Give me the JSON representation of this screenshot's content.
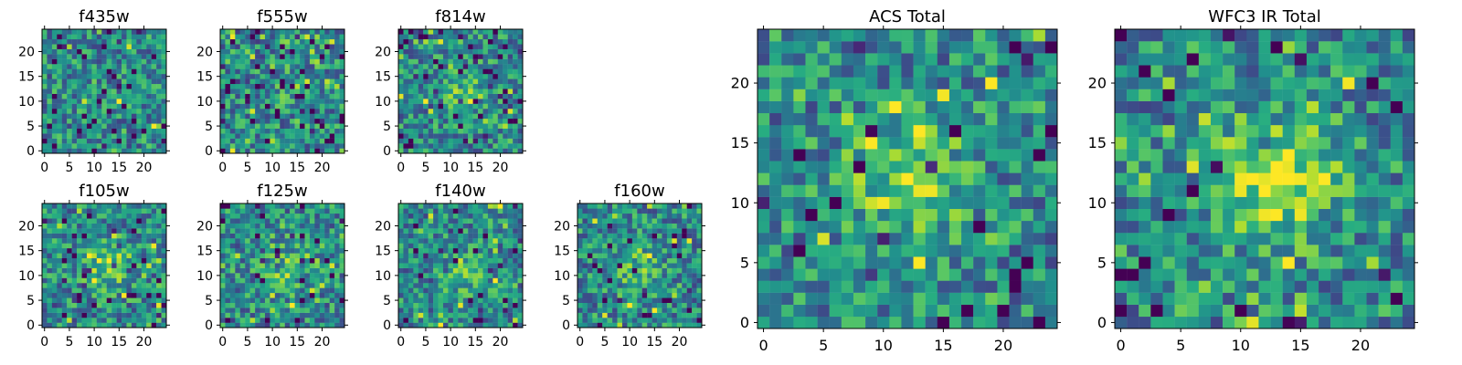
{
  "chart_data": [
    {
      "type": "heatmap",
      "title": "f435w",
      "grid": false,
      "xlim": [
        0,
        24
      ],
      "ylim": [
        0,
        24
      ],
      "xticks": [
        "0",
        "5",
        "10",
        "15",
        "20"
      ],
      "yticks": [
        "0",
        "5",
        "10",
        "15",
        "20"
      ],
      "rows": 25,
      "cols": 25,
      "seed": 11,
      "bright_center": [
        12,
        8
      ],
      "bright_strength": 0.0,
      "dark_fraction": 0.08,
      "colormap": "viridis"
    },
    {
      "type": "heatmap",
      "title": "f555w",
      "grid": false,
      "xlim": [
        0,
        24
      ],
      "ylim": [
        0,
        24
      ],
      "xticks": [
        "0",
        "5",
        "10",
        "15",
        "20"
      ],
      "yticks": [
        "0",
        "5",
        "10",
        "15",
        "20"
      ],
      "rows": 25,
      "cols": 25,
      "seed": 23,
      "bright_center": [
        13,
        12
      ],
      "bright_strength": 0.12,
      "dark_fraction": 0.08,
      "colormap": "viridis"
    },
    {
      "type": "heatmap",
      "title": "f814w",
      "grid": false,
      "xlim": [
        0,
        24
      ],
      "ylim": [
        0,
        24
      ],
      "xticks": [
        "0",
        "5",
        "10",
        "15",
        "20"
      ],
      "yticks": [
        "0",
        "5",
        "10",
        "15",
        "20"
      ],
      "rows": 25,
      "cols": 25,
      "seed": 37,
      "bright_center": [
        12,
        12
      ],
      "bright_strength": 0.2,
      "dark_fraction": 0.1,
      "colormap": "viridis"
    },
    {
      "type": "heatmap",
      "title": "f105w",
      "grid": false,
      "xlim": [
        0,
        24
      ],
      "ylim": [
        0,
        24
      ],
      "xticks": [
        "0",
        "5",
        "10",
        "15",
        "20"
      ],
      "yticks": [
        "0",
        "5",
        "10",
        "15",
        "20"
      ],
      "rows": 25,
      "cols": 25,
      "seed": 51,
      "bright_center": [
        13,
        12
      ],
      "bright_strength": 0.32,
      "dark_fraction": 0.06,
      "colormap": "viridis"
    },
    {
      "type": "heatmap",
      "title": "f125w",
      "grid": false,
      "xlim": [
        0,
        24
      ],
      "ylim": [
        0,
        24
      ],
      "xticks": [
        "0",
        "5",
        "10",
        "15",
        "20"
      ],
      "yticks": [
        "0",
        "5",
        "10",
        "15",
        "20"
      ],
      "rows": 25,
      "cols": 25,
      "seed": 67,
      "bright_center": [
        13,
        11
      ],
      "bright_strength": 0.22,
      "dark_fraction": 0.05,
      "colormap": "viridis"
    },
    {
      "type": "heatmap",
      "title": "f140w",
      "grid": false,
      "xlim": [
        0,
        24
      ],
      "ylim": [
        0,
        24
      ],
      "xticks": [
        "0",
        "5",
        "10",
        "15",
        "20"
      ],
      "yticks": [
        "0",
        "5",
        "10",
        "15",
        "20"
      ],
      "rows": 25,
      "cols": 25,
      "seed": 79,
      "bright_center": [
        13,
        11
      ],
      "bright_strength": 0.2,
      "dark_fraction": 0.04,
      "colormap": "viridis"
    },
    {
      "type": "heatmap",
      "title": "f160w",
      "grid": false,
      "xlim": [
        0,
        24
      ],
      "ylim": [
        0,
        24
      ],
      "xticks": [
        "0",
        "5",
        "10",
        "15",
        "20"
      ],
      "yticks": [
        "0",
        "5",
        "10",
        "15",
        "20"
      ],
      "rows": 25,
      "cols": 25,
      "seed": 97,
      "bright_center": [
        12,
        11
      ],
      "bright_strength": 0.24,
      "dark_fraction": 0.06,
      "colormap": "viridis"
    },
    {
      "type": "heatmap",
      "title": "ACS Total",
      "grid": false,
      "xlim": [
        0,
        24
      ],
      "ylim": [
        0,
        24
      ],
      "xticks": [
        "0",
        "5",
        "10",
        "15",
        "20"
      ],
      "yticks": [
        "0",
        "5",
        "10",
        "15",
        "20"
      ],
      "rows": 25,
      "cols": 25,
      "seed": 113,
      "bright_center": [
        12,
        12
      ],
      "bright_strength": 0.34,
      "dark_fraction": 0.05,
      "colormap": "viridis"
    },
    {
      "type": "heatmap",
      "title": "WFC3 IR Total",
      "grid": false,
      "xlim": [
        0,
        24
      ],
      "ylim": [
        0,
        24
      ],
      "xticks": [
        "0",
        "5",
        "10",
        "15",
        "20"
      ],
      "yticks": [
        "0",
        "5",
        "10",
        "15",
        "20"
      ],
      "rows": 25,
      "cols": 25,
      "seed": 131,
      "bright_center": [
        13,
        12
      ],
      "bright_strength": 0.48,
      "dark_fraction": 0.04,
      "colormap": "viridis"
    }
  ]
}
